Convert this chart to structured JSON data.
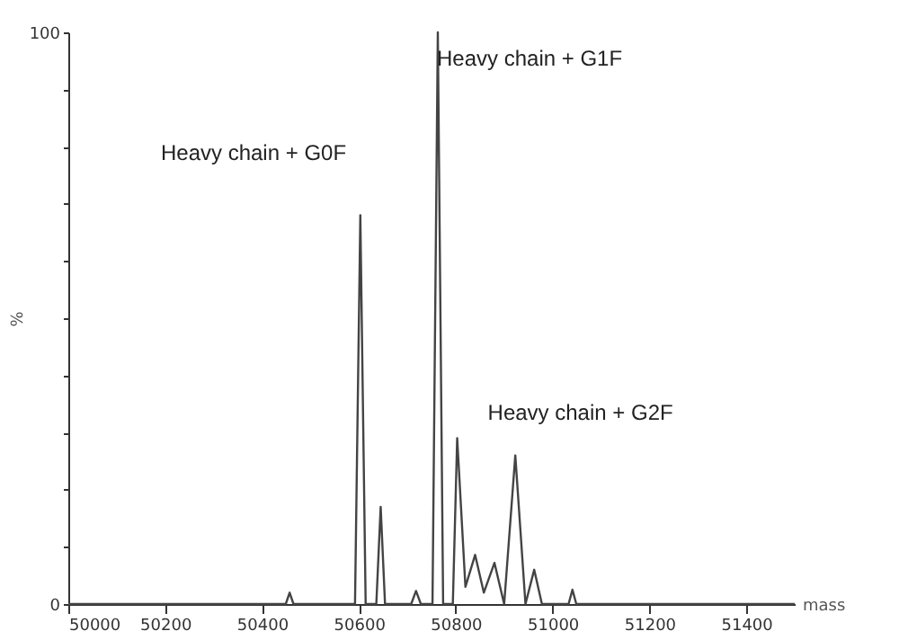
{
  "chart_data": {
    "type": "line",
    "xlabel": "mass",
    "ylabel": "%",
    "x": [
      50000,
      50449,
      50457,
      50465,
      50592,
      50603,
      50614,
      50636,
      50645,
      50654,
      50708,
      50718,
      50728,
      50752,
      50763,
      50774,
      50794,
      50803,
      50820,
      50840,
      50858,
      50880,
      50900,
      50923,
      50944,
      50962,
      50978,
      51033,
      51041,
      51049,
      51500
    ],
    "series": [
      {
        "color": "#444444",
        "values": [
          0,
          0,
          2,
          0,
          0,
          68,
          0,
          0,
          17,
          0,
          0,
          2.3,
          0,
          0,
          100,
          0,
          0,
          29,
          3,
          8.6,
          2,
          7.2,
          0,
          26,
          0,
          6,
          0,
          0,
          2.5,
          0,
          0
        ]
      }
    ],
    "xlim": [
      50000,
      51500
    ],
    "ylim": [
      0,
      100
    ],
    "xticks": [
      50000,
      50200,
      50400,
      50600,
      50800,
      51000,
      51200,
      51400
    ],
    "yticks": [
      0,
      {
        "value": 10,
        "label": null
      },
      {
        "value": 20,
        "label": null
      },
      {
        "value": 30,
        "label": null
      },
      {
        "value": 40,
        "label": null
      },
      {
        "value": 50,
        "label": null
      },
      {
        "value": 60,
        "label": null
      },
      {
        "value": 70,
        "label": null
      },
      {
        "value": 80,
        "label": null
      },
      {
        "value": 90,
        "label": null
      },
      100
    ],
    "grid": false,
    "marker": "none",
    "line_style": "solid",
    "annotations": [
      "Heavy chain + G0F",
      "Heavy chain + G1F",
      "Heavy chain + G2F"
    ]
  }
}
